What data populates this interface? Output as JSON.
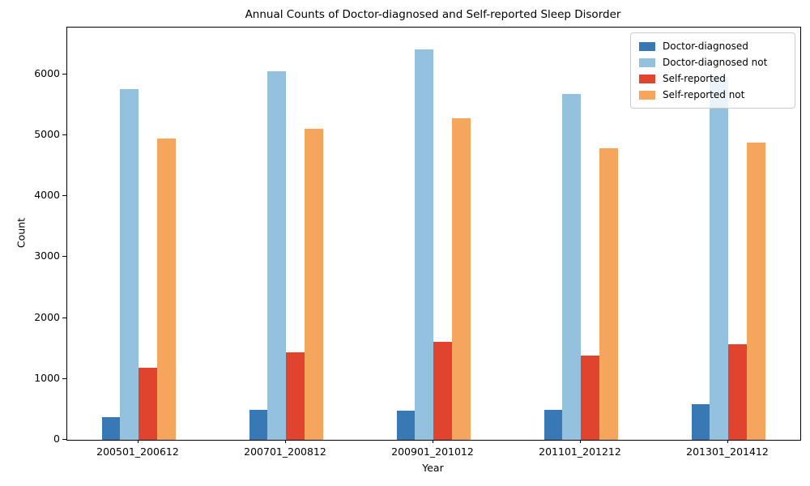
{
  "chart_data": {
    "type": "bar",
    "title": "Annual Counts of Doctor-diagnosed and Self-reported Sleep Disorder",
    "xlabel": "Year",
    "ylabel": "Count",
    "categories": [
      "200501_200612",
      "200701_200812",
      "200901_201012",
      "201101_201212",
      "201301_201412"
    ],
    "series": [
      {
        "name": "Doctor-diagnosed",
        "color": "#3878b4",
        "values": [
          370,
          490,
          480,
          490,
          580
        ]
      },
      {
        "name": "Doctor-diagnosed not",
        "color": "#94c1dd",
        "values": [
          5760,
          6050,
          6410,
          5680,
          5950
        ]
      },
      {
        "name": "Self-reported",
        "color": "#e0432e",
        "values": [
          1180,
          1440,
          1610,
          1380,
          1575
        ]
      },
      {
        "name": "Self-reported not",
        "color": "#f5a65c",
        "values": [
          4950,
          5110,
          5280,
          4790,
          4880
        ]
      }
    ],
    "yticks": [
      0,
      1000,
      2000,
      3000,
      4000,
      5000,
      6000
    ],
    "ylim": [
      0,
      6766
    ],
    "grid": false,
    "legend_position": "upper right"
  }
}
